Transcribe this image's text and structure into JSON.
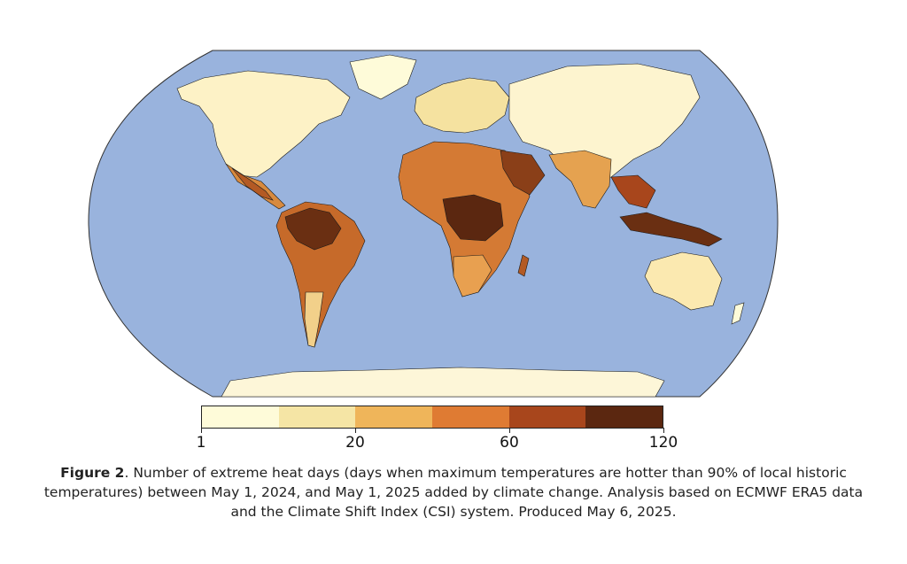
{
  "map": {
    "projection": "robinson",
    "ocean_color": "#99b3dd",
    "border_color": "#1a1a1a"
  },
  "legend": {
    "colors": [
      "#fefbd9",
      "#f5e5a5",
      "#efb55a",
      "#df7b33",
      "#a8461c",
      "#5b2710"
    ],
    "ticks": [
      {
        "label": "1",
        "pos": 0
      },
      {
        "label": "20",
        "pos": 2
      },
      {
        "label": "60",
        "pos": 4
      },
      {
        "label": "120",
        "pos": 6
      }
    ]
  },
  "caption": {
    "label": "Figure 2",
    "text": ". Number of extreme heat days (days when maximum temperatures are hotter than 90% of local historic temperatures) between May 1, 2024, and May 1, 2025 added by climate change. Analysis based on ECMWF ERA5 data and the Climate Shift Index (CSI) system. Produced May 6, 2025."
  }
}
